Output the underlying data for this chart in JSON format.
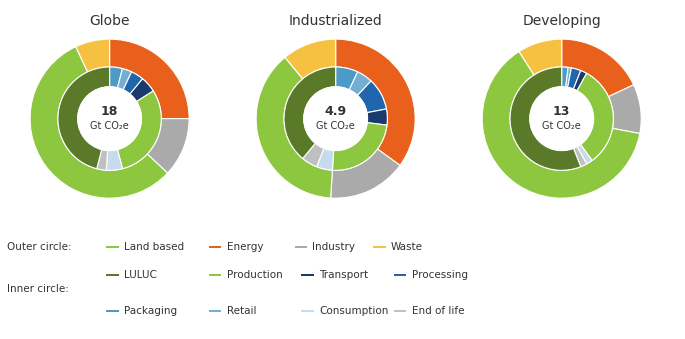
{
  "charts": [
    {
      "title": "Globe",
      "center_val": "18",
      "center_unit": "Gt CO₂e",
      "outer": {
        "values": [
          25,
          12,
          56,
          7
        ],
        "colors": [
          "#e8601c",
          "#aaaaaa",
          "#8dc63f",
          "#f6c141"
        ],
        "labels": [
          "Energy",
          "Industry",
          "Land based",
          "Waste"
        ]
      },
      "inner": {
        "values": [
          4,
          3,
          4,
          5,
          30,
          5,
          3,
          46
        ],
        "colors": [
          "#4e9ac7",
          "#74afd3",
          "#2166ac",
          "#1a3a6e",
          "#8dc63f",
          "#c6dcee",
          "#c0c0c0",
          "#5a7a2a"
        ],
        "labels": [
          "Packaging",
          "Retail",
          "Processing",
          "Transport",
          "Production",
          "Consumption",
          "End of life",
          "LULUC"
        ]
      }
    },
    {
      "title": "Industrialized",
      "center_val": "4.9",
      "center_unit": "Gt CO₂e",
      "outer": {
        "values": [
          35,
          16,
          38,
          11
        ],
        "colors": [
          "#e8601c",
          "#aaaaaa",
          "#8dc63f",
          "#f6c141"
        ],
        "labels": [
          "Energy",
          "Industry",
          "Land based",
          "Waste"
        ]
      },
      "inner": {
        "values": [
          7,
          5,
          10,
          5,
          24,
          5,
          5,
          39
        ],
        "colors": [
          "#4e9ac7",
          "#74afd3",
          "#2166ac",
          "#1a3a6e",
          "#8dc63f",
          "#c6dcee",
          "#c0c0c0",
          "#5a7a2a"
        ],
        "labels": [
          "Packaging",
          "Retail",
          "Processing",
          "Transport",
          "Production",
          "Consumption",
          "End of life",
          "LULUC"
        ]
      }
    },
    {
      "title": "Developing",
      "center_val": "13",
      "center_unit": "Gt CO₂e",
      "outer": {
        "values": [
          18,
          10,
          63,
          9
        ],
        "colors": [
          "#e8601c",
          "#aaaaaa",
          "#8dc63f",
          "#f6c141"
        ],
        "labels": [
          "Energy",
          "Industry",
          "Land based",
          "Waste"
        ]
      },
      "inner": {
        "values": [
          2,
          1,
          3,
          2,
          32,
          2,
          2,
          56
        ],
        "colors": [
          "#4e9ac7",
          "#74afd3",
          "#2166ac",
          "#1a3a6e",
          "#8dc63f",
          "#c6dcee",
          "#c0c0c0",
          "#5a7a2a"
        ],
        "labels": [
          "Packaging",
          "Retail",
          "Processing",
          "Transport",
          "Production",
          "Consumption",
          "End of life",
          "LULUC"
        ]
      }
    }
  ],
  "outer_legend": [
    {
      "label": "Land based",
      "color": "#8dc63f"
    },
    {
      "label": "Energy",
      "color": "#e8601c"
    },
    {
      "label": "Industry",
      "color": "#aaaaaa"
    },
    {
      "label": "Waste",
      "color": "#f6c141"
    }
  ],
  "inner_legend": [
    {
      "label": "LULUC",
      "color": "#5a7a2a"
    },
    {
      "label": "Production",
      "color": "#8dc63f"
    },
    {
      "label": "Transport",
      "color": "#1a3a6e"
    },
    {
      "label": "Processing",
      "color": "#2166ac"
    },
    {
      "label": "Packaging",
      "color": "#4e9ac7"
    },
    {
      "label": "Retail",
      "color": "#74afd3"
    },
    {
      "label": "Consumption",
      "color": "#c6dcee"
    },
    {
      "label": "End of life",
      "color": "#c0c0c0"
    }
  ],
  "bg": "#ffffff",
  "fg": "#333333"
}
